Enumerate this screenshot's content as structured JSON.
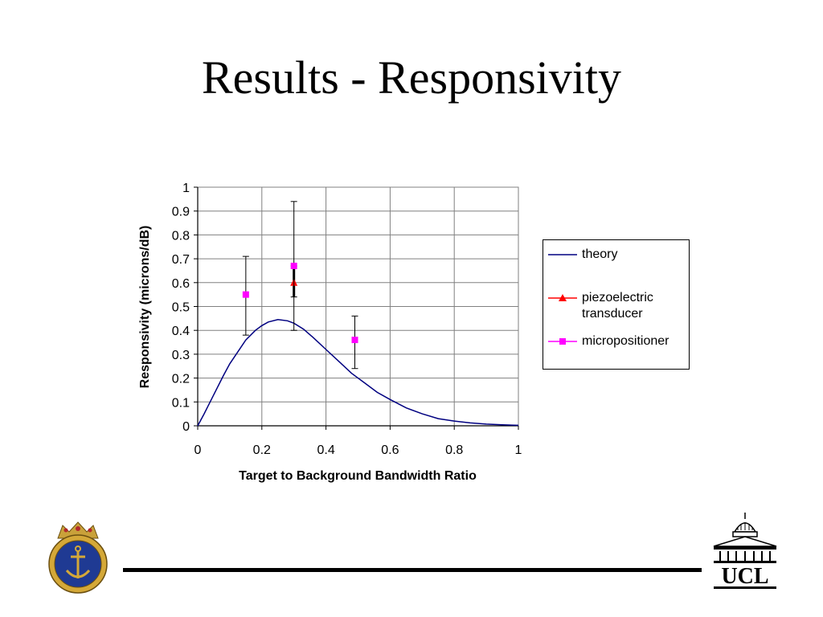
{
  "slide": {
    "title": "Results - Responsivity"
  },
  "chart_data": {
    "type": "line",
    "title": "",
    "xlabel": "Target to Background Bandwidth Ratio",
    "ylabel": "Responsivity (microns/dB)",
    "xlim": [
      0,
      1
    ],
    "ylim": [
      0,
      1
    ],
    "xticks": [
      "0",
      "0.2",
      "0.4",
      "0.6",
      "0.8",
      "1"
    ],
    "yticks": [
      "0",
      "0.1",
      "0.2",
      "0.3",
      "0.4",
      "0.5",
      "0.6",
      "0.7",
      "0.8",
      "0.9",
      "1"
    ],
    "grid": true,
    "legend_position": "right",
    "series": [
      {
        "name": "theory",
        "kind": "line",
        "color": "#000080",
        "x": [
          0,
          0.02,
          0.05,
          0.08,
          0.1,
          0.12,
          0.15,
          0.18,
          0.2,
          0.22,
          0.25,
          0.28,
          0.3,
          0.33,
          0.36,
          0.4,
          0.44,
          0.48,
          0.52,
          0.56,
          0.6,
          0.65,
          0.7,
          0.75,
          0.8,
          0.85,
          0.9,
          0.95,
          1.0
        ],
        "y": [
          0,
          0.05,
          0.13,
          0.21,
          0.26,
          0.3,
          0.36,
          0.4,
          0.42,
          0.435,
          0.445,
          0.44,
          0.43,
          0.405,
          0.37,
          0.32,
          0.27,
          0.22,
          0.18,
          0.14,
          0.11,
          0.075,
          0.05,
          0.03,
          0.02,
          0.012,
          0.007,
          0.004,
          0.002
        ]
      },
      {
        "name": "piezoelectric transducer",
        "kind": "scatter",
        "marker": "triangle",
        "color": "#ff0000",
        "points": [
          {
            "x": 0.3,
            "y": 0.6,
            "err_low": 0.54,
            "err_high": 0.67
          }
        ]
      },
      {
        "name": "micropositioner",
        "kind": "scatter",
        "marker": "square",
        "color": "#ff00ff",
        "points": [
          {
            "x": 0.15,
            "y": 0.55,
            "err_low": 0.38,
            "err_high": 0.71
          },
          {
            "x": 0.3,
            "y": 0.67,
            "err_low": 0.4,
            "err_high": 0.94
          },
          {
            "x": 0.49,
            "y": 0.36,
            "err_low": 0.24,
            "err_high": 0.46
          }
        ]
      }
    ]
  },
  "legend": {
    "items": [
      {
        "label": "theory"
      },
      {
        "label": "piezoelectric transducer"
      },
      {
        "label": "micropositioner"
      }
    ]
  },
  "footer": {
    "left_logo": "navy-crest-icon",
    "right_logo": "ucl-logo",
    "right_logo_text": "UCL"
  }
}
